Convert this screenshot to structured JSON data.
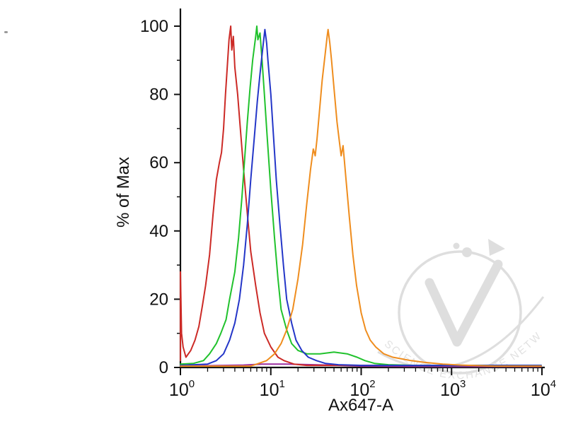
{
  "figure": {
    "background": "#ffffff",
    "axis_color": "#111111",
    "watermark_text": "SCIENCE EXCHANGE NETWORK",
    "watermark_color": "#c2c2c2",
    "y_ticks": [
      "0",
      "20",
      "40",
      "60",
      "80",
      "100"
    ],
    "x_ticks": [
      {
        "base": "10",
        "exp": "0"
      },
      {
        "base": "10",
        "exp": "1"
      },
      {
        "base": "10",
        "exp": "2"
      },
      {
        "base": "10",
        "exp": "3"
      },
      {
        "base": "10",
        "exp": "4"
      }
    ]
  },
  "chart_data": {
    "type": "line",
    "title": "",
    "xlabel": "Ax647-A",
    "ylabel": "% of Max",
    "x_scale": "log10",
    "x_range": [
      1,
      10000
    ],
    "y_range": [
      0,
      100
    ],
    "grid": false,
    "legend": "none",
    "x_tick_values": [
      1,
      10,
      100,
      1000,
      10000
    ],
    "y_tick_values": [
      0,
      20,
      40,
      60,
      80,
      100
    ],
    "series": [
      {
        "name": "violet",
        "color": "#9b2fa0",
        "points": [
          [
            1,
            0.4
          ],
          [
            5,
            0.7
          ],
          [
            8,
            1
          ],
          [
            15,
            1
          ],
          [
            30,
            0.8
          ],
          [
            60,
            0.6
          ],
          [
            100,
            0.4
          ],
          [
            1000,
            0.3
          ],
          [
            9800,
            0.3
          ]
        ]
      },
      {
        "name": "red",
        "color": "#cc2a26",
        "points": [
          [
            1,
            2
          ],
          [
            1,
            28
          ],
          [
            1.03,
            10
          ],
          [
            1.07,
            6
          ],
          [
            1.15,
            3
          ],
          [
            1.3,
            5
          ],
          [
            1.45,
            8
          ],
          [
            1.6,
            12
          ],
          [
            1.75,
            18
          ],
          [
            1.9,
            24
          ],
          [
            2.1,
            33
          ],
          [
            2.3,
            45
          ],
          [
            2.5,
            55
          ],
          [
            2.7,
            60
          ],
          [
            2.85,
            63
          ],
          [
            3.0,
            70
          ],
          [
            3.15,
            80
          ],
          [
            3.3,
            88
          ],
          [
            3.45,
            96
          ],
          [
            3.6,
            100
          ],
          [
            3.7,
            93
          ],
          [
            3.85,
            97
          ],
          [
            4.0,
            88
          ],
          [
            4.3,
            80
          ],
          [
            4.6,
            70
          ],
          [
            5.0,
            58
          ],
          [
            5.5,
            45
          ],
          [
            6.0,
            34
          ],
          [
            6.8,
            24
          ],
          [
            7.6,
            16
          ],
          [
            8.5,
            10
          ],
          [
            10,
            6
          ],
          [
            12,
            3
          ],
          [
            14,
            2
          ],
          [
            18,
            1
          ],
          [
            25,
            0.6
          ],
          [
            40,
            0.6
          ],
          [
            100,
            0.6
          ],
          [
            1000,
            0.6
          ],
          [
            9800,
            0.6
          ]
        ]
      },
      {
        "name": "green",
        "color": "#21c22d",
        "points": [
          [
            1,
            1
          ],
          [
            1.4,
            1.2
          ],
          [
            1.8,
            2
          ],
          [
            2.1,
            4
          ],
          [
            2.5,
            7
          ],
          [
            2.8,
            10
          ],
          [
            3.2,
            14
          ],
          [
            3.5,
            20
          ],
          [
            4.0,
            28
          ],
          [
            4.4,
            38
          ],
          [
            4.8,
            50
          ],
          [
            5.1,
            60
          ],
          [
            5.5,
            72
          ],
          [
            5.9,
            82
          ],
          [
            6.3,
            90
          ],
          [
            6.8,
            97
          ],
          [
            7.0,
            100
          ],
          [
            7.2,
            96
          ],
          [
            7.6,
            98
          ],
          [
            8.0,
            90
          ],
          [
            8.5,
            80
          ],
          [
            9.1,
            68
          ],
          [
            10,
            52
          ],
          [
            11,
            38
          ],
          [
            12,
            26
          ],
          [
            13,
            17
          ],
          [
            15,
            11
          ],
          [
            17,
            7
          ],
          [
            20,
            5
          ],
          [
            25,
            4
          ],
          [
            35,
            4
          ],
          [
            50,
            4.5
          ],
          [
            70,
            4
          ],
          [
            90,
            3
          ],
          [
            110,
            2
          ],
          [
            140,
            1.2
          ],
          [
            200,
            0.8
          ],
          [
            400,
            0.6
          ],
          [
            1000,
            0.6
          ],
          [
            9800,
            0.6
          ]
        ]
      },
      {
        "name": "blue",
        "color": "#2436c8",
        "points": [
          [
            1,
            0.6
          ],
          [
            2,
            1
          ],
          [
            2.5,
            2
          ],
          [
            3,
            4
          ],
          [
            3.5,
            8
          ],
          [
            4,
            13
          ],
          [
            4.5,
            20
          ],
          [
            5,
            30
          ],
          [
            5.5,
            42
          ],
          [
            6,
            55
          ],
          [
            6.6,
            68
          ],
          [
            7.1,
            78
          ],
          [
            7.6,
            86
          ],
          [
            8.1,
            93
          ],
          [
            8.6,
            99
          ],
          [
            9.0,
            95
          ],
          [
            9.3,
            90
          ],
          [
            10,
            80
          ],
          [
            10.7,
            68
          ],
          [
            11.5,
            55
          ],
          [
            12.6,
            42
          ],
          [
            13.8,
            30
          ],
          [
            15,
            20
          ],
          [
            17,
            13
          ],
          [
            19,
            8
          ],
          [
            22,
            5
          ],
          [
            26,
            3
          ],
          [
            32,
            2
          ],
          [
            40,
            1.2
          ],
          [
            56,
            0.8
          ],
          [
            100,
            0.6
          ],
          [
            9800,
            0.6
          ]
        ]
      },
      {
        "name": "orange",
        "color": "#ef8d1e",
        "points": [
          [
            1,
            0.4
          ],
          [
            6,
            0.4
          ],
          [
            7,
            1
          ],
          [
            9,
            2
          ],
          [
            11,
            4
          ],
          [
            13,
            7
          ],
          [
            15,
            11
          ],
          [
            17.5,
            17
          ],
          [
            20,
            26
          ],
          [
            22.5,
            36
          ],
          [
            25,
            48
          ],
          [
            27.5,
            58
          ],
          [
            29.5,
            64
          ],
          [
            31,
            62
          ],
          [
            32.5,
            67
          ],
          [
            34.5,
            75
          ],
          [
            37,
            84
          ],
          [
            40,
            92
          ],
          [
            42,
            97
          ],
          [
            43,
            99
          ],
          [
            45,
            95
          ],
          [
            47,
            90
          ],
          [
            50,
            82
          ],
          [
            54,
            72
          ],
          [
            57.5,
            66
          ],
          [
            60,
            62
          ],
          [
            63,
            65
          ],
          [
            68,
            55
          ],
          [
            74,
            44
          ],
          [
            81,
            33
          ],
          [
            89,
            24
          ],
          [
            100,
            16
          ],
          [
            112,
            11
          ],
          [
            126,
            8
          ],
          [
            145,
            6
          ],
          [
            178,
            4
          ],
          [
            224,
            3
          ],
          [
            282,
            2.5
          ],
          [
            355,
            2
          ],
          [
            500,
            1.5
          ],
          [
            800,
            1
          ],
          [
            1250,
            0.7
          ],
          [
            3000,
            0.4
          ],
          [
            9800,
            0.4
          ]
        ]
      }
    ]
  }
}
